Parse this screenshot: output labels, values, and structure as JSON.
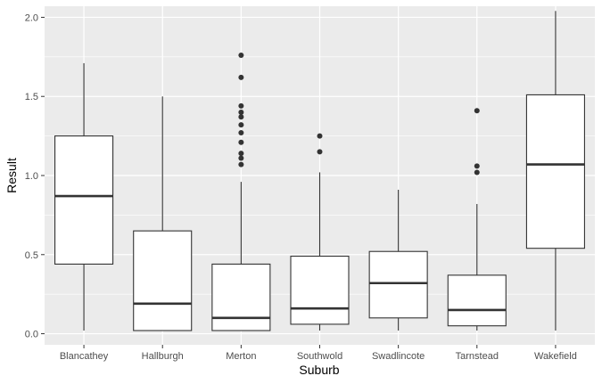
{
  "chart_data": {
    "type": "boxplot",
    "title": "",
    "xlabel": "Suburb",
    "ylabel": "Result",
    "ylim": [
      -0.07,
      2.07
    ],
    "yticks": [
      0.0,
      0.5,
      1.0,
      1.5,
      2.0
    ],
    "ytick_labels": [
      "0.0",
      "0.5",
      "1.0",
      "1.5",
      "2.0"
    ],
    "grid": true,
    "legend": "none",
    "colors": {
      "panel_background": "#EBEBEB",
      "grid_major": "#FFFFFF",
      "box_fill": "#FFFFFF",
      "box_line": "#333333",
      "outlier": "#333333"
    },
    "categories": [
      "Blancathey",
      "Hallburgh",
      "Merton",
      "Southwold",
      "Swadlincote",
      "Tarnstead",
      "Wakefield"
    ],
    "boxes": [
      {
        "category": "Blancathey",
        "whisker_low": 0.02,
        "q1": 0.44,
        "median": 0.87,
        "q3": 1.25,
        "whisker_high": 1.71,
        "outliers": []
      },
      {
        "category": "Hallburgh",
        "whisker_low": 0.02,
        "q1": 0.02,
        "median": 0.19,
        "q3": 0.65,
        "whisker_high": 1.5,
        "outliers": []
      },
      {
        "category": "Merton",
        "whisker_low": 0.02,
        "q1": 0.02,
        "median": 0.1,
        "q3": 0.44,
        "whisker_high": 0.96,
        "outliers": [
          1.07,
          1.11,
          1.14,
          1.21,
          1.27,
          1.32,
          1.37,
          1.4,
          1.44,
          1.62,
          1.76
        ]
      },
      {
        "category": "Southwold",
        "whisker_low": 0.02,
        "q1": 0.06,
        "median": 0.16,
        "q3": 0.49,
        "whisker_high": 1.02,
        "outliers": [
          1.15,
          1.25
        ]
      },
      {
        "category": "Swadlincote",
        "whisker_low": 0.02,
        "q1": 0.1,
        "median": 0.32,
        "q3": 0.52,
        "whisker_high": 0.91,
        "outliers": []
      },
      {
        "category": "Tarnstead",
        "whisker_low": 0.02,
        "q1": 0.05,
        "median": 0.15,
        "q3": 0.37,
        "whisker_high": 0.82,
        "outliers": [
          1.02,
          1.06,
          1.41
        ]
      },
      {
        "category": "Wakefield",
        "whisker_low": 0.02,
        "q1": 0.54,
        "median": 1.07,
        "q3": 1.51,
        "whisker_high": 2.04,
        "outliers": []
      }
    ]
  }
}
